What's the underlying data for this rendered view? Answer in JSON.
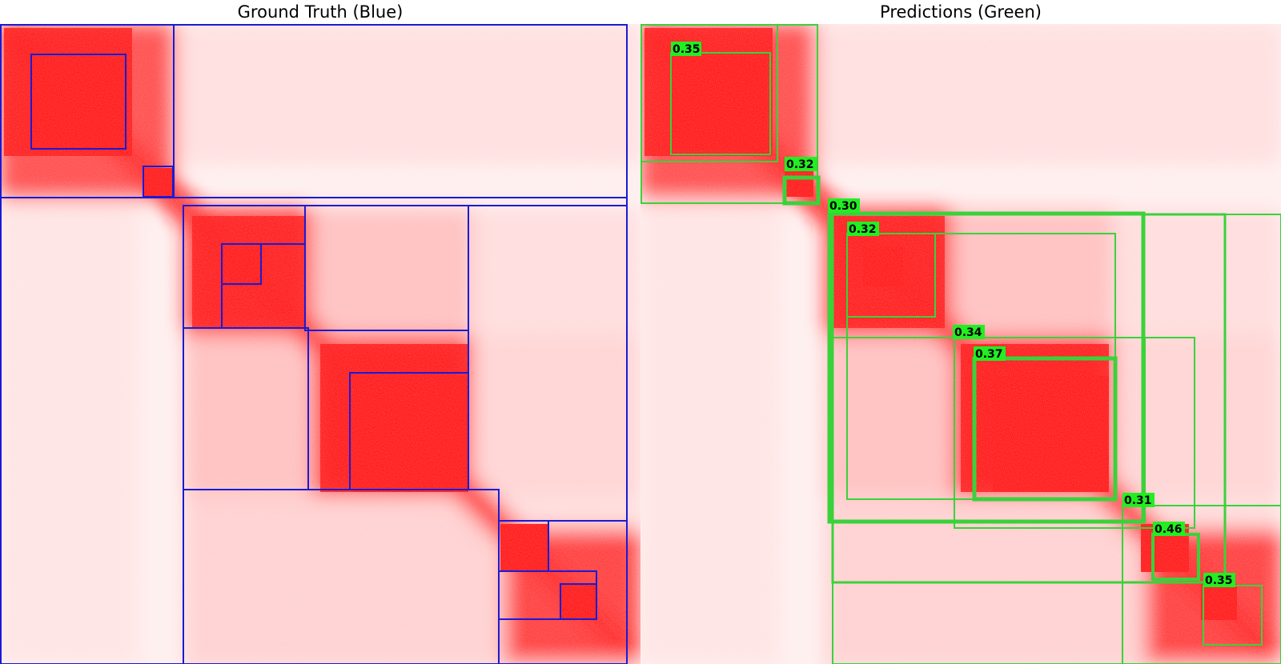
{
  "panels": {
    "left": {
      "title": "Ground Truth (Blue)",
      "box_color": "#1a1ad6"
    },
    "right": {
      "title": "Predictions (Green)",
      "box_color": "#3ad23a",
      "label_bg": "#22ee22"
    }
  },
  "colors": {
    "background": "#fff2f2",
    "mid": "#ffc2c2",
    "signal": "#ff0000"
  },
  "predictions": {
    "scores": [
      "0.35",
      "0.32",
      "0.30",
      "0.32",
      "0.34",
      "0.37",
      "0.31",
      "0.46",
      "0.35"
    ]
  }
}
